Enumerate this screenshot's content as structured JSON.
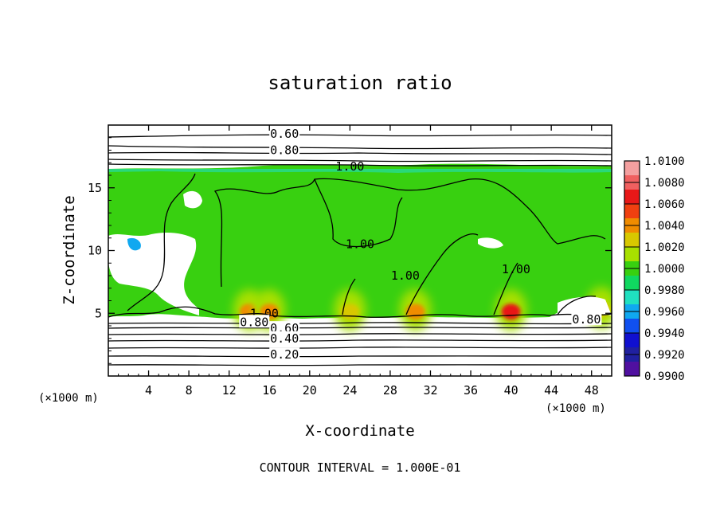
{
  "chart_data": {
    "type": "heatmap",
    "title": "saturation ratio",
    "xlabel": "X-coordinate",
    "ylabel": "Z-coordinate",
    "x_unit_left": "(×1000 m)",
    "x_unit_right": "(×1000 m)",
    "footer": "CONTOUR INTERVAL = 1.000E-01",
    "xlim": [
      0,
      50
    ],
    "ylim": [
      0,
      20
    ],
    "x_ticks": [
      4,
      8,
      12,
      16,
      20,
      24,
      28,
      32,
      36,
      40,
      44,
      48
    ],
    "y_ticks": [
      5,
      10,
      15
    ],
    "colorbar": {
      "labels": [
        "1.0100",
        "1.0080",
        "1.0060",
        "1.0040",
        "1.0020",
        "1.0000",
        "0.9980",
        "0.9960",
        "0.9940",
        "0.9920",
        "0.9900"
      ],
      "colors": [
        "#f4a0a0",
        "#f06060",
        "#e81818",
        "#f04010",
        "#f08c00",
        "#d8c800",
        "#a8e000",
        "#38d010",
        "#10d860",
        "#20e0c0",
        "#10a8f0",
        "#1050f0",
        "#1010d0",
        "#2020a0",
        "#5010a0"
      ]
    },
    "contour_labels": [
      {
        "text": "0.60",
        "x": 17.5,
        "y": 19.3
      },
      {
        "text": "0.80",
        "x": 17.5,
        "y": 18.0
      },
      {
        "text": "1.00",
        "x": 24.0,
        "y": 16.7
      },
      {
        "text": "1.00",
        "x": 25.0,
        "y": 10.5
      },
      {
        "text": "1.00",
        "x": 29.5,
        "y": 8.0
      },
      {
        "text": "1.00",
        "x": 40.5,
        "y": 8.5
      },
      {
        "text": "1.00",
        "x": 15.5,
        "y": 5.0
      },
      {
        "text": "0.80",
        "x": 14.5,
        "y": 4.3
      },
      {
        "text": "0.60",
        "x": 17.5,
        "y": 3.8
      },
      {
        "text": "0.40",
        "x": 17.5,
        "y": 3.0
      },
      {
        "text": "0.20",
        "x": 17.5,
        "y": 1.7
      },
      {
        "text": "0.80",
        "x": 47.5,
        "y": 4.5
      }
    ],
    "field": {
      "background": "#38d010",
      "high_spots": [
        {
          "x": 14.0,
          "y": 5.0,
          "level": 1.004
        },
        {
          "x": 16.0,
          "y": 5.0,
          "level": 1.004
        },
        {
          "x": 24.0,
          "y": 5.0,
          "level": 1.003
        },
        {
          "x": 30.5,
          "y": 5.0,
          "level": 1.004
        },
        {
          "x": 40.0,
          "y": 5.0,
          "level": 1.007
        },
        {
          "x": 49.0,
          "y": 5.2,
          "level": 1.003
        }
      ]
    }
  }
}
